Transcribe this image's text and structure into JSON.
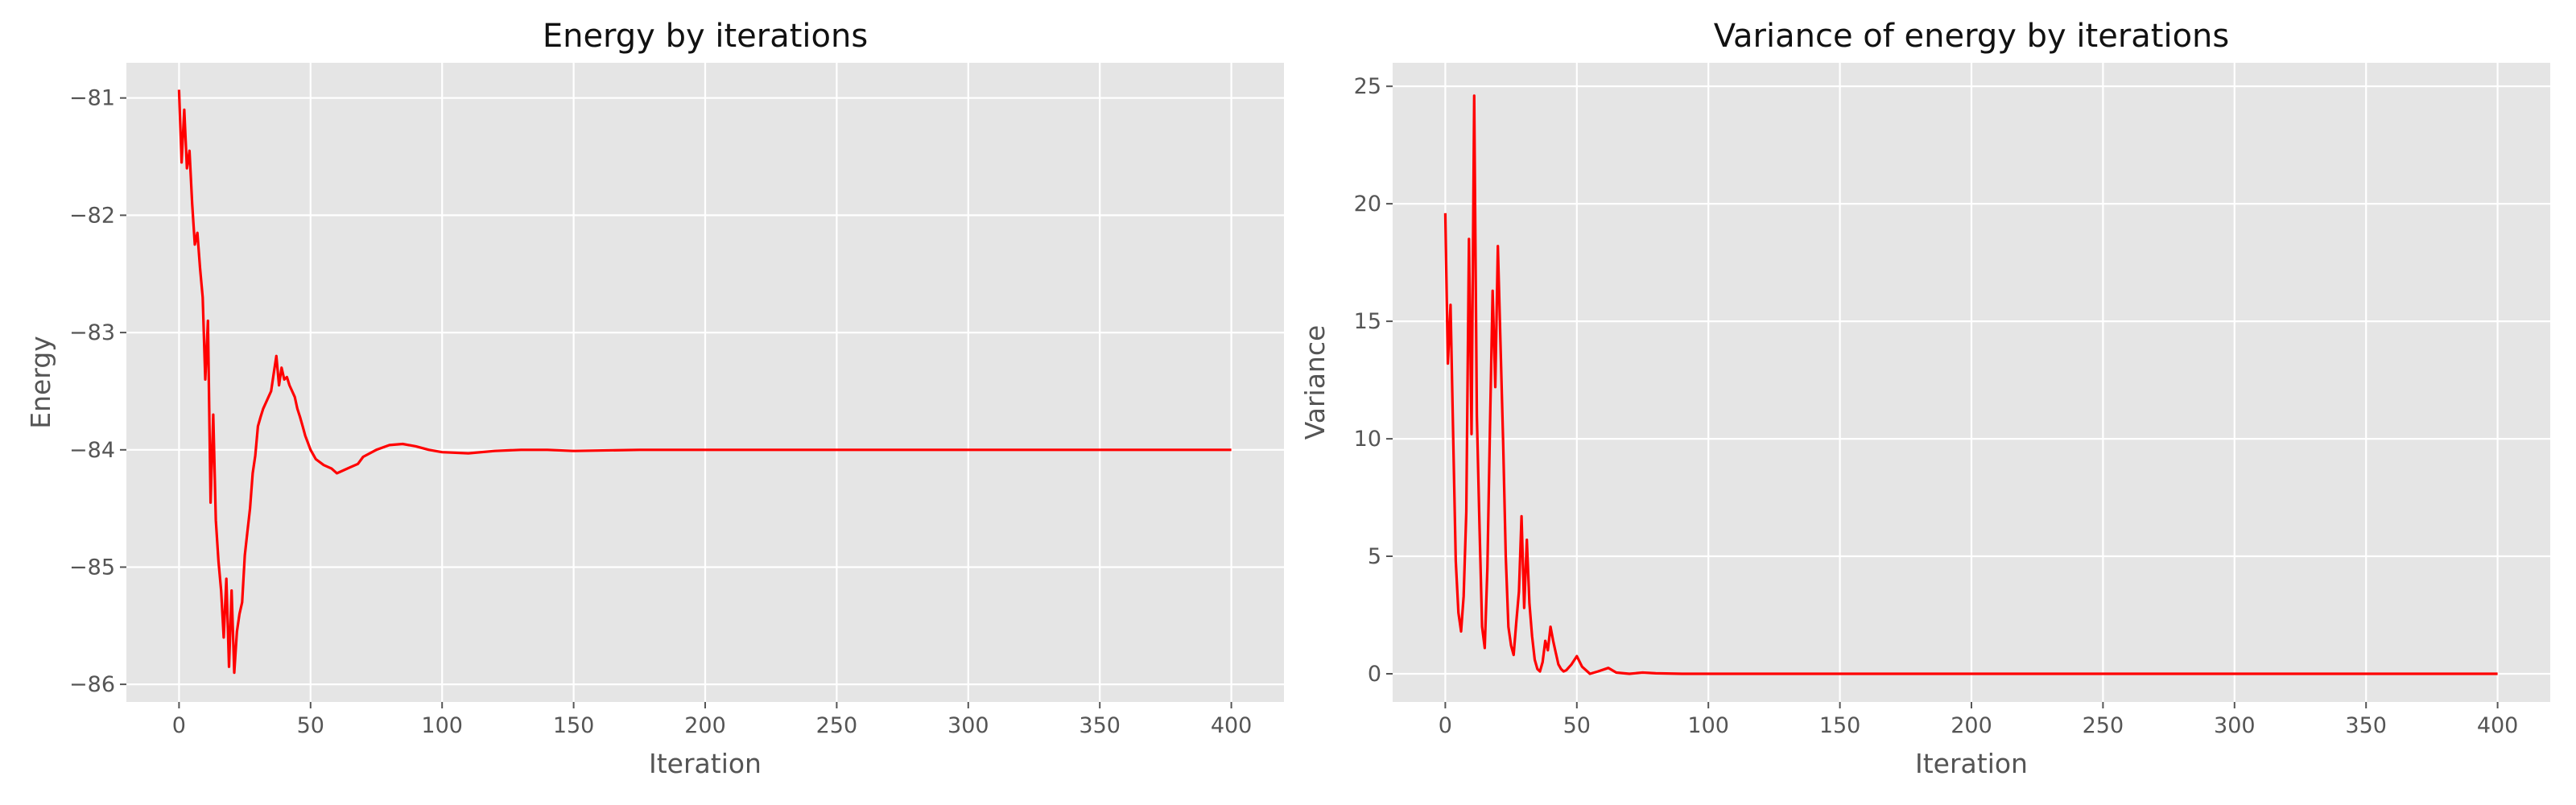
{
  "colors": {
    "series": "#ff0000",
    "background": "#e5e5e5",
    "grid": "#ffffff"
  },
  "chart_data": [
    {
      "type": "line",
      "title": "Energy by iterations",
      "xlabel": "Iteration",
      "ylabel": "Energy",
      "xlim": [
        -20,
        420
      ],
      "ylim": [
        -86.15,
        -80.7
      ],
      "xticks": [
        0,
        50,
        100,
        150,
        200,
        250,
        300,
        350,
        400
      ],
      "yticks": [
        -86,
        -85,
        -84,
        -83,
        -82,
        -81
      ],
      "grid": true,
      "series": [
        {
          "x": [
            0,
            1,
            2,
            3,
            4,
            5,
            6,
            7,
            8,
            9,
            10,
            11,
            12,
            13,
            14,
            15,
            16,
            17,
            18,
            19,
            20,
            21,
            22,
            23,
            24,
            25,
            26,
            27,
            28,
            29,
            30,
            31,
            32,
            33,
            34,
            35,
            36,
            37,
            38,
            39,
            40,
            41,
            42,
            43,
            44,
            45,
            46,
            47,
            48,
            50,
            52,
            55,
            58,
            60,
            62,
            65,
            68,
            70,
            75,
            80,
            85,
            90,
            95,
            100,
            110,
            120,
            130,
            140,
            150,
            175,
            200,
            250,
            300,
            350,
            400
          ],
          "y": [
            -80.93,
            -81.55,
            -81.1,
            -81.6,
            -81.45,
            -81.9,
            -82.25,
            -82.15,
            -82.45,
            -82.7,
            -83.4,
            -82.9,
            -84.45,
            -83.7,
            -84.6,
            -84.95,
            -85.2,
            -85.6,
            -85.1,
            -85.85,
            -85.2,
            -85.9,
            -85.55,
            -85.4,
            -85.3,
            -84.9,
            -84.7,
            -84.5,
            -84.2,
            -84.05,
            -83.8,
            -83.72,
            -83.65,
            -83.6,
            -83.55,
            -83.5,
            -83.35,
            -83.2,
            -83.45,
            -83.3,
            -83.4,
            -83.38,
            -83.45,
            -83.5,
            -83.55,
            -83.65,
            -83.72,
            -83.8,
            -83.88,
            -84.0,
            -84.08,
            -84.13,
            -84.16,
            -84.2,
            -84.18,
            -84.15,
            -84.12,
            -84.06,
            -84.0,
            -83.96,
            -83.95,
            -83.97,
            -84.0,
            -84.02,
            -84.03,
            -84.01,
            -84.0,
            -84.0,
            -84.01,
            -84.0,
            -84.0,
            -84.0,
            -84.0,
            -84.0,
            -84.0
          ]
        }
      ]
    },
    {
      "type": "line",
      "title": "Variance of energy by iterations",
      "xlabel": "Iteration",
      "ylabel": "Variance",
      "xlim": [
        -20,
        420
      ],
      "ylim": [
        -1.2,
        26.0
      ],
      "xticks": [
        0,
        50,
        100,
        150,
        200,
        250,
        300,
        350,
        400
      ],
      "yticks": [
        0,
        5,
        10,
        15,
        20,
        25
      ],
      "grid": true,
      "series": [
        {
          "x": [
            0,
            1,
            2,
            3,
            4,
            5,
            6,
            7,
            8,
            9,
            10,
            11,
            12,
            13,
            14,
            15,
            16,
            17,
            18,
            19,
            20,
            21,
            22,
            23,
            24,
            25,
            26,
            27,
            28,
            29,
            30,
            31,
            32,
            33,
            34,
            35,
            36,
            37,
            38,
            39,
            40,
            41,
            42,
            43,
            44,
            45,
            46,
            48,
            50,
            52,
            55,
            58,
            62,
            65,
            70,
            75,
            80,
            90,
            100,
            150,
            200,
            300,
            400
          ],
          "y": [
            19.6,
            13.2,
            15.7,
            10.1,
            4.8,
            2.6,
            1.8,
            3.3,
            6.9,
            18.5,
            10.2,
            24.6,
            11.0,
            6.4,
            2.0,
            1.1,
            4.5,
            10.5,
            16.3,
            12.2,
            18.2,
            14.0,
            9.8,
            5.0,
            2.0,
            1.2,
            0.8,
            2.2,
            3.5,
            6.7,
            2.8,
            5.7,
            3.0,
            1.6,
            0.6,
            0.2,
            0.1,
            0.5,
            1.4,
            1.0,
            2.0,
            1.4,
            0.9,
            0.4,
            0.2,
            0.1,
            0.15,
            0.4,
            0.75,
            0.3,
            0.0,
            0.1,
            0.25,
            0.05,
            0.0,
            0.05,
            0.02,
            0.0,
            0.0,
            0.0,
            0.0,
            0.0,
            0.0
          ]
        }
      ]
    }
  ]
}
